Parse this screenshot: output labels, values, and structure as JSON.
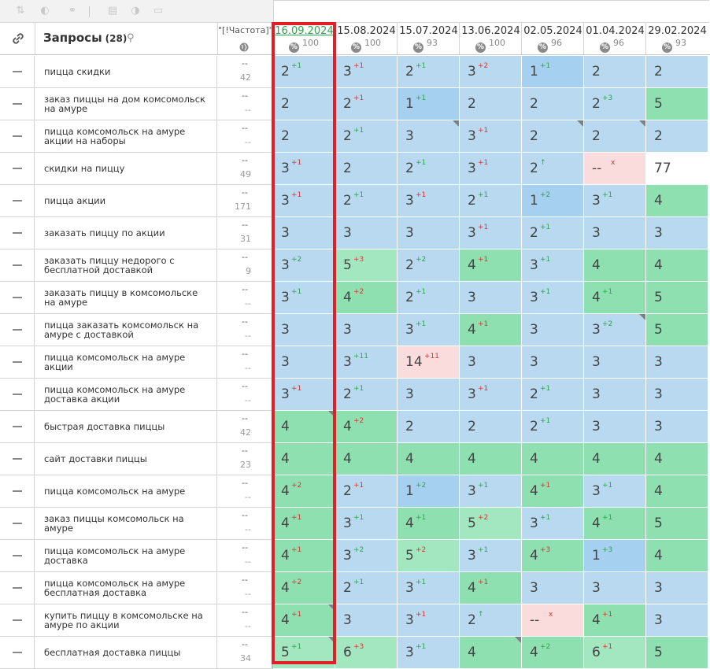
{
  "header": {
    "queries_title": "Запросы",
    "queries_count": "(28)",
    "freq_title": "\"[!Частота]\"",
    "dates": [
      {
        "date": "16.09.2024",
        "pct": "100",
        "selected": true
      },
      {
        "date": "15.08.2024",
        "pct": "100"
      },
      {
        "date": "15.07.2024",
        "pct": "93"
      },
      {
        "date": "13.06.2024",
        "pct": "100"
      },
      {
        "date": "02.05.2024",
        "pct": "96"
      },
      {
        "date": "01.04.2024",
        "pct": "96"
      },
      {
        "date": "29.02.2024",
        "pct": "93"
      }
    ]
  },
  "rows": [
    {
      "query": "пицца скидки",
      "fa": "--",
      "fb": "42",
      "cells": [
        [
          "2",
          "+1",
          "up",
          "blue",
          0
        ],
        [
          "3",
          "+1",
          "down",
          "blue",
          0
        ],
        [
          "2",
          "+1",
          "up",
          "blue",
          0
        ],
        [
          "3",
          "+2",
          "down",
          "blue",
          0
        ],
        [
          "1",
          "+1",
          "up",
          "dblue",
          0
        ],
        [
          "2",
          "",
          "",
          "blue",
          0
        ],
        [
          "2",
          "",
          "",
          "blue",
          0
        ]
      ]
    },
    {
      "query": "заказ пиццы на дом комсомольск на амуре",
      "fa": "--",
      "fb": "--",
      "cells": [
        [
          "2",
          "",
          "",
          "blue",
          0
        ],
        [
          "2",
          "+1",
          "down",
          "blue",
          0
        ],
        [
          "1",
          "+1",
          "up",
          "dblue",
          0
        ],
        [
          "2",
          "",
          "",
          "blue",
          0
        ],
        [
          "2",
          "",
          "",
          "blue",
          0
        ],
        [
          "2",
          "+3",
          "up",
          "blue",
          0
        ],
        [
          "5",
          "",
          "",
          "green",
          0
        ]
      ]
    },
    {
      "query": "пицца комсомольск на амуре акции на наборы",
      "fa": "--",
      "fb": "--",
      "cells": [
        [
          "2",
          "",
          "",
          "blue",
          0
        ],
        [
          "2",
          "+1",
          "up",
          "blue",
          0
        ],
        [
          "3",
          "",
          "",
          "blue",
          1
        ],
        [
          "3",
          "+1",
          "down",
          "blue",
          0
        ],
        [
          "2",
          "",
          "",
          "blue",
          1
        ],
        [
          "2",
          "",
          "",
          "blue",
          1
        ],
        [
          "2",
          "",
          "",
          "blue",
          0
        ]
      ]
    },
    {
      "query": "скидки на пиццу",
      "fa": "--",
      "fb": "49",
      "cells": [
        [
          "3",
          "+1",
          "down",
          "blue",
          0
        ],
        [
          "2",
          "",
          "",
          "blue",
          0
        ],
        [
          "2",
          "+1",
          "up",
          "blue",
          0
        ],
        [
          "3",
          "+1",
          "down",
          "blue",
          0
        ],
        [
          "2",
          "↑",
          "up",
          "blue",
          0
        ],
        [
          "--",
          "x",
          "down",
          "pink",
          0
        ],
        [
          "77",
          "",
          "",
          "white",
          0
        ]
      ]
    },
    {
      "query": "пицца акции",
      "fa": "--",
      "fb": "171",
      "cells": [
        [
          "3",
          "+1",
          "down",
          "blue",
          0
        ],
        [
          "2",
          "+1",
          "up",
          "blue",
          0
        ],
        [
          "3",
          "+1",
          "down",
          "blue",
          0
        ],
        [
          "2",
          "+1",
          "up",
          "blue",
          0
        ],
        [
          "1",
          "+2",
          "up",
          "dblue",
          0
        ],
        [
          "3",
          "+1",
          "up",
          "blue",
          0
        ],
        [
          "4",
          "",
          "",
          "green",
          0
        ]
      ]
    },
    {
      "query": "заказать пиццу по акции",
      "fa": "--",
      "fb": "31",
      "cells": [
        [
          "3",
          "",
          "",
          "blue",
          0
        ],
        [
          "3",
          "",
          "",
          "blue",
          0
        ],
        [
          "3",
          "",
          "",
          "blue",
          0
        ],
        [
          "3",
          "+1",
          "down",
          "blue",
          0
        ],
        [
          "2",
          "+1",
          "up",
          "blue",
          0
        ],
        [
          "3",
          "",
          "",
          "blue",
          0
        ],
        [
          "3",
          "",
          "",
          "blue",
          0
        ]
      ]
    },
    {
      "query": "заказать пиццу недорого с бесплатной доставкой",
      "fa": "--",
      "fb": "9",
      "cells": [
        [
          "3",
          "+2",
          "up",
          "blue",
          0
        ],
        [
          "5",
          "+3",
          "down",
          "lgreen",
          0
        ],
        [
          "2",
          "+2",
          "up",
          "blue",
          0
        ],
        [
          "4",
          "+1",
          "down",
          "green",
          0
        ],
        [
          "3",
          "+1",
          "up",
          "blue",
          0
        ],
        [
          "4",
          "",
          "",
          "green",
          0
        ],
        [
          "4",
          "",
          "",
          "green",
          0
        ]
      ]
    },
    {
      "query": "заказать пиццу в комсомольске на амуре",
      "fa": "--",
      "fb": "--",
      "cells": [
        [
          "3",
          "+1",
          "up",
          "blue",
          0
        ],
        [
          "4",
          "+2",
          "down",
          "green",
          0
        ],
        [
          "2",
          "+1",
          "up",
          "blue",
          0
        ],
        [
          "3",
          "",
          "",
          "blue",
          0
        ],
        [
          "3",
          "+1",
          "up",
          "blue",
          0
        ],
        [
          "4",
          "+1",
          "up",
          "green",
          0
        ],
        [
          "5",
          "",
          "",
          "green",
          0
        ]
      ]
    },
    {
      "query": "пицца заказать комсомольск на амуре с доставкой",
      "fa": "--",
      "fb": "--",
      "cells": [
        [
          "3",
          "",
          "",
          "blue",
          0
        ],
        [
          "3",
          "",
          "",
          "blue",
          0
        ],
        [
          "3",
          "+1",
          "up",
          "blue",
          0
        ],
        [
          "4",
          "+1",
          "down",
          "green",
          0
        ],
        [
          "3",
          "",
          "",
          "blue",
          0
        ],
        [
          "3",
          "+2",
          "up",
          "blue",
          1
        ],
        [
          "5",
          "",
          "",
          "green",
          0
        ]
      ]
    },
    {
      "query": "пицца комсомольск на амуре акции",
      "fa": "--",
      "fb": "--",
      "cells": [
        [
          "3",
          "",
          "",
          "blue",
          0
        ],
        [
          "3",
          "+11",
          "up",
          "blue",
          0
        ],
        [
          "14",
          "+11",
          "down",
          "pink",
          0
        ],
        [
          "3",
          "",
          "",
          "blue",
          0
        ],
        [
          "3",
          "",
          "",
          "blue",
          0
        ],
        [
          "3",
          "",
          "",
          "blue",
          0
        ],
        [
          "3",
          "",
          "",
          "blue",
          0
        ]
      ]
    },
    {
      "query": "пицца комсомольск на амуре доставка акции",
      "fa": "--",
      "fb": "--",
      "cells": [
        [
          "3",
          "+1",
          "down",
          "blue",
          0
        ],
        [
          "2",
          "+1",
          "up",
          "blue",
          0
        ],
        [
          "3",
          "",
          "",
          "blue",
          0
        ],
        [
          "3",
          "+1",
          "down",
          "blue",
          0
        ],
        [
          "2",
          "+1",
          "up",
          "blue",
          0
        ],
        [
          "3",
          "",
          "",
          "blue",
          0
        ],
        [
          "3",
          "",
          "",
          "blue",
          0
        ]
      ]
    },
    {
      "query": "быстрая доставка пиццы",
      "fa": "--",
      "fb": "42",
      "cells": [
        [
          "4",
          "",
          "",
          "green",
          1
        ],
        [
          "4",
          "+2",
          "down",
          "green",
          0
        ],
        [
          "2",
          "",
          "",
          "blue",
          0
        ],
        [
          "2",
          "",
          "",
          "blue",
          0
        ],
        [
          "2",
          "+1",
          "up",
          "blue",
          0
        ],
        [
          "3",
          "",
          "",
          "blue",
          0
        ],
        [
          "3",
          "",
          "",
          "blue",
          0
        ]
      ]
    },
    {
      "query": "сайт доставки пиццы",
      "fa": "--",
      "fb": "23",
      "cells": [
        [
          "4",
          "",
          "",
          "green",
          0
        ],
        [
          "4",
          "",
          "",
          "green",
          0
        ],
        [
          "4",
          "",
          "",
          "green",
          0
        ],
        [
          "4",
          "",
          "",
          "green",
          0
        ],
        [
          "4",
          "",
          "",
          "green",
          0
        ],
        [
          "4",
          "",
          "",
          "green",
          0
        ],
        [
          "4",
          "",
          "",
          "green",
          0
        ]
      ]
    },
    {
      "query": "пицца комсомольск на амуре",
      "fa": "--",
      "fb": "--",
      "cells": [
        [
          "4",
          "+2",
          "down",
          "green",
          0
        ],
        [
          "2",
          "+1",
          "down",
          "blue",
          0
        ],
        [
          "1",
          "+2",
          "up",
          "dblue",
          0
        ],
        [
          "3",
          "+1",
          "up",
          "blue",
          0
        ],
        [
          "4",
          "+1",
          "down",
          "green",
          0
        ],
        [
          "3",
          "+1",
          "up",
          "blue",
          0
        ],
        [
          "4",
          "",
          "",
          "green",
          0
        ]
      ]
    },
    {
      "query": "заказ пиццы комсомольск на амуре",
      "fa": "--",
      "fb": "--",
      "cells": [
        [
          "4",
          "+1",
          "down",
          "green",
          0
        ],
        [
          "3",
          "+1",
          "up",
          "blue",
          0
        ],
        [
          "4",
          "+1",
          "up",
          "green",
          0
        ],
        [
          "5",
          "+2",
          "down",
          "lgreen",
          0
        ],
        [
          "3",
          "+1",
          "up",
          "blue",
          0
        ],
        [
          "4",
          "+1",
          "up",
          "green",
          0
        ],
        [
          "5",
          "",
          "",
          "green",
          0
        ]
      ]
    },
    {
      "query": "пицца комсомольск на амуре доставка",
      "fa": "--",
      "fb": "--",
      "cells": [
        [
          "4",
          "+1",
          "down",
          "green",
          0
        ],
        [
          "3",
          "+2",
          "up",
          "blue",
          0
        ],
        [
          "5",
          "+2",
          "down",
          "lgreen",
          0
        ],
        [
          "3",
          "+1",
          "up",
          "blue",
          0
        ],
        [
          "4",
          "+3",
          "down",
          "green",
          0
        ],
        [
          "1",
          "+3",
          "up",
          "dblue",
          0
        ],
        [
          "4",
          "",
          "",
          "green",
          0
        ]
      ]
    },
    {
      "query": "пицца комсомольск на амуре бесплатная доставка",
      "fa": "--",
      "fb": "--",
      "cells": [
        [
          "4",
          "+2",
          "down",
          "green",
          0
        ],
        [
          "2",
          "+1",
          "up",
          "blue",
          0
        ],
        [
          "3",
          "+1",
          "up",
          "blue",
          0
        ],
        [
          "4",
          "+1",
          "down",
          "green",
          0
        ],
        [
          "3",
          "",
          "",
          "blue",
          0
        ],
        [
          "3",
          "",
          "",
          "blue",
          0
        ],
        [
          "3",
          "",
          "",
          "blue",
          0
        ]
      ]
    },
    {
      "query": "купить пиццу в комсомольске на амуре по акции",
      "fa": "--",
      "fb": "--",
      "cells": [
        [
          "4",
          "+1",
          "down",
          "green",
          1
        ],
        [
          "3",
          "",
          "",
          "blue",
          0
        ],
        [
          "3",
          "+1",
          "down",
          "blue",
          0
        ],
        [
          "2",
          "↑",
          "up",
          "blue",
          0
        ],
        [
          "--",
          "x",
          "down",
          "pink",
          0
        ],
        [
          "4",
          "+1",
          "down",
          "green",
          0
        ],
        [
          "3",
          "",
          "",
          "blue",
          0
        ]
      ]
    },
    {
      "query": "бесплатная доставка пиццы",
      "fa": "--",
      "fb": "34",
      "cells": [
        [
          "5",
          "+1",
          "up",
          "lgreen",
          1
        ],
        [
          "6",
          "+3",
          "down",
          "lgreen",
          0
        ],
        [
          "3",
          "+1",
          "up",
          "blue",
          0
        ],
        [
          "4",
          "",
          "",
          "green",
          1
        ],
        [
          "4",
          "+2",
          "up",
          "green",
          0
        ],
        [
          "6",
          "+1",
          "down",
          "lgreen",
          0
        ],
        [
          "5",
          "",
          "",
          "green",
          0
        ]
      ]
    }
  ]
}
